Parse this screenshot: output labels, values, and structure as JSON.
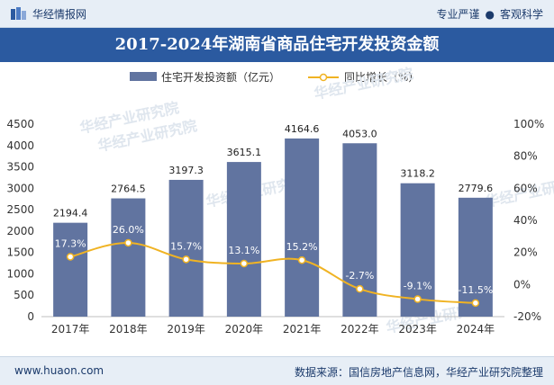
{
  "header": {
    "brand": "华经情报网",
    "slogan_left": "专业严谨",
    "slogan_dot": "●",
    "slogan_right": "客观科学"
  },
  "title": "2017-2024年湖南省商品住宅开发投资金额",
  "legend": {
    "bar": "住宅开发投资额（亿元）",
    "line": "同比增长（%）"
  },
  "watermark": "华经产业研究院",
  "footer": {
    "site": "www.huaon.com",
    "source": "数据来源：国信房地产信息网，华经产业研究院整理"
  },
  "colors": {
    "bar": "#6174a0",
    "line": "#f0b323",
    "title_band": "#2b5aa0",
    "header_bg": "#e7eef6"
  },
  "chart_data": {
    "type": "bar",
    "categories": [
      "2017年",
      "2018年",
      "2019年",
      "2020年",
      "2021年",
      "2022年",
      "2023年",
      "2024年"
    ],
    "series": [
      {
        "name": "住宅开发投资额（亿元）",
        "type": "bar",
        "axis": "left",
        "values": [
          2194.4,
          2764.5,
          3197.3,
          3615.1,
          4164.6,
          4053.0,
          3118.2,
          2779.6
        ],
        "labels": [
          "2194.4",
          "2764.5",
          "3197.3",
          "3615.1",
          "4164.6",
          "4053.0",
          "3118.2",
          "2779.6"
        ]
      },
      {
        "name": "同比增长（%）",
        "type": "line",
        "axis": "right",
        "values": [
          17.3,
          26.0,
          15.7,
          13.1,
          15.2,
          -2.7,
          -9.1,
          -11.5
        ],
        "labels": [
          "17.3%",
          "26.0%",
          "15.7%",
          "13.1%",
          "15.2%",
          "-2.7%",
          "-9.1%",
          "-11.5%"
        ]
      }
    ],
    "y_left": {
      "range": [
        0,
        4500
      ],
      "ticks": [
        "0",
        "500",
        "1000",
        "1500",
        "2000",
        "2500",
        "3000",
        "3500",
        "4000",
        "4500"
      ]
    },
    "y_right": {
      "range": [
        -20,
        100
      ],
      "ticks": [
        "-20%",
        "0%",
        "20%",
        "40%",
        "60%",
        "80%",
        "100%"
      ]
    },
    "grid": false,
    "legend_position": "top-center"
  }
}
